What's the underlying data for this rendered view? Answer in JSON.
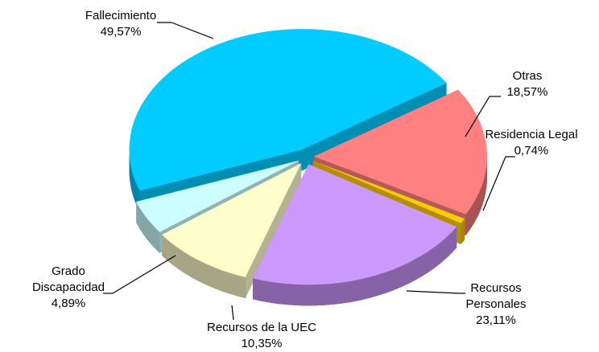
{
  "chart_data": {
    "type": "pie",
    "categories": [
      "Fallecimiento",
      "Otras",
      "Residencia Legal",
      "Recursos Personales",
      "Recursos de la UEC",
      "Grado Discapacidad"
    ],
    "values": [
      49.57,
      18.57,
      0.74,
      23.11,
      10.35,
      4.89
    ],
    "value_labels": [
      "49,57%",
      "18,57%",
      "0,74%",
      "23,11%",
      "10,35%",
      "4,89%"
    ],
    "colors": [
      "#00ccff",
      "#ff8080",
      "#ffcc00",
      "#cc99ff",
      "#ffffcc",
      "#ccffff"
    ]
  }
}
